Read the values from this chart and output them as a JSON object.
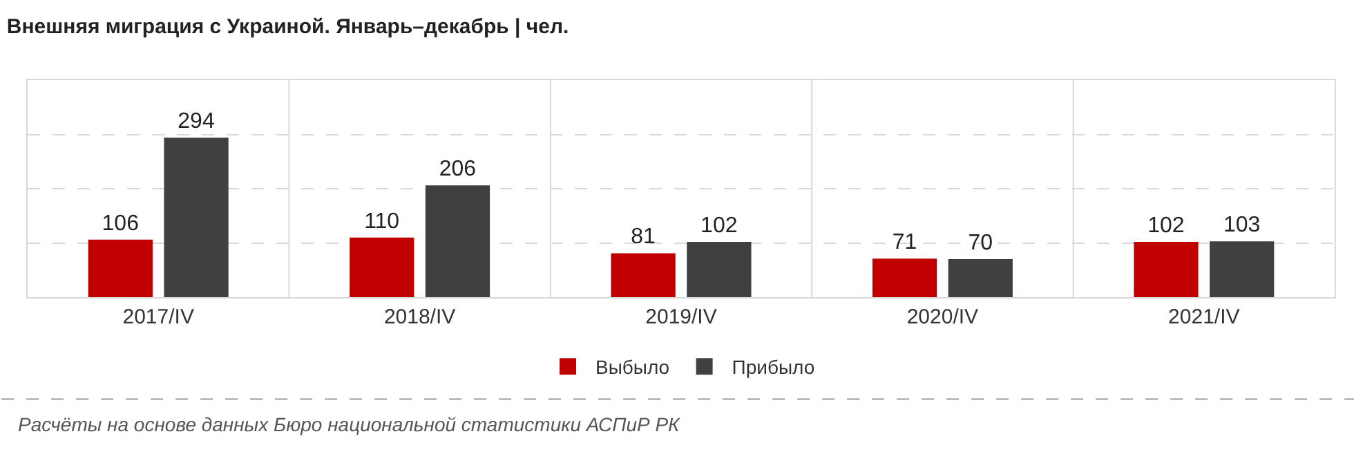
{
  "chart_data": {
    "type": "bar",
    "title": "Внешняя миграция с Украиной. Январь–декабрь | чел.",
    "categories": [
      "2017/IV",
      "2018/IV",
      "2019/IV",
      "2020/IV",
      "2021/IV"
    ],
    "series": [
      {
        "name": "Выбыло",
        "color": "#c00000",
        "values": [
          106,
          110,
          81,
          71,
          102
        ]
      },
      {
        "name": "Прибыло",
        "color": "#404040",
        "values": [
          294,
          206,
          102,
          70,
          103
        ]
      }
    ],
    "ylim": [
      0,
      400
    ],
    "yticks": [
      {
        "value": 0,
        "label": null
      },
      {
        "value": 100,
        "label": null
      },
      {
        "value": 200,
        "label": null
      },
      {
        "value": 300,
        "label": null
      },
      {
        "value": 400,
        "label": null
      }
    ],
    "tick_labels": "x",
    "grid": true,
    "legend": "bottom",
    "data_labels": true,
    "annotations": [
      "Расчёты на основе данных Бюро национальной статистики АСПиР РК"
    ]
  }
}
